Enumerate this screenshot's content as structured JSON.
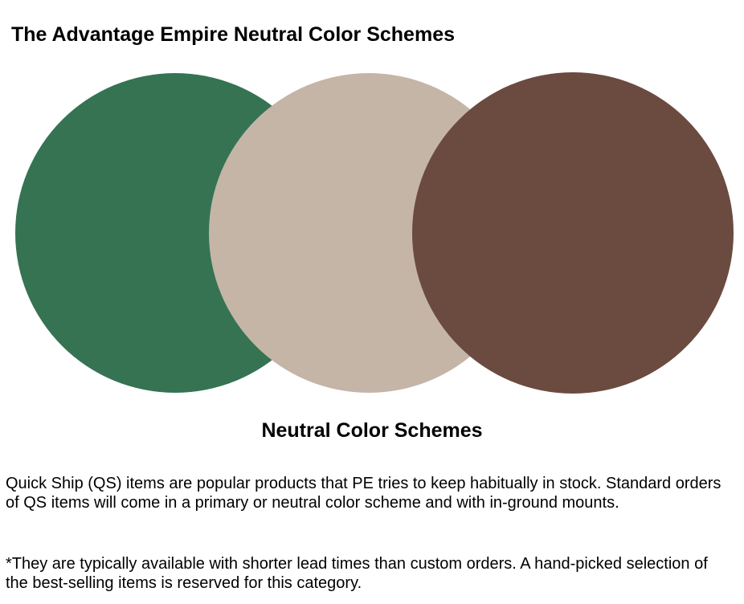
{
  "header": {
    "title": "The Advantage Empire Neutral Color Schemes"
  },
  "swatches": [
    {
      "name": "green",
      "color": "#357353"
    },
    {
      "name": "beige",
      "color": "#c4b5a7"
    },
    {
      "name": "brown",
      "color": "#6b4a40"
    }
  ],
  "section": {
    "title": "Neutral Color Schemes"
  },
  "body": {
    "paragraph1": "Quick Ship (QS) items are popular products that PE tries to keep habitually in stock. Standard orders of QS items will come in a primary or neutral color scheme and with in-ground mounts.",
    "paragraph2": "*They are typically available with shorter lead times than custom orders. A hand-picked selection of the best-selling items is reserved for this category."
  }
}
